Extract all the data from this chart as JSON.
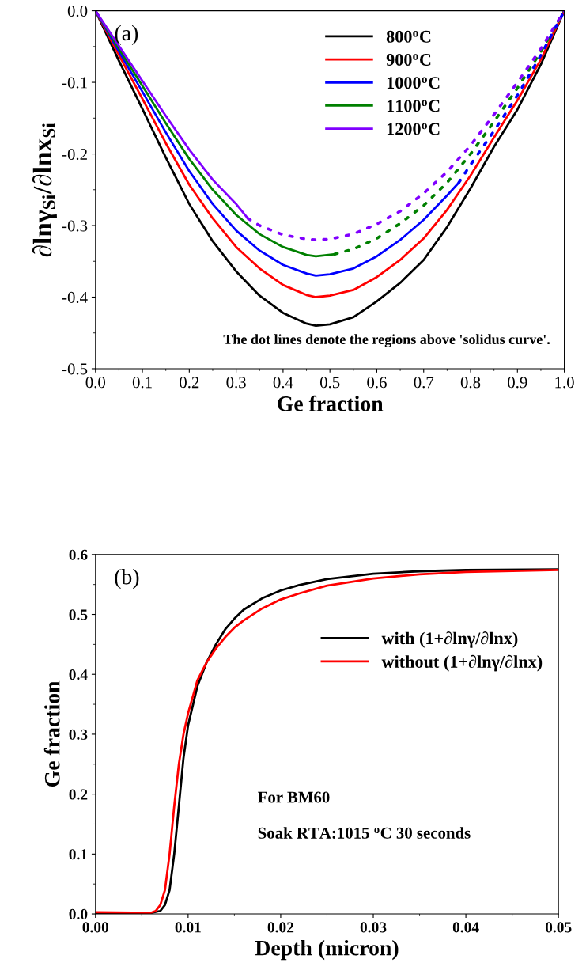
{
  "chart_data": [
    {
      "type": "line",
      "xlabel": "Ge fraction",
      "ylabel": "∂lnγ$_{Si}$/∂lnx$_{Si}$",
      "xlim": [
        0,
        1
      ],
      "ylim": [
        -0.5,
        0
      ],
      "xticks": [
        {
          "value": 0,
          "label": "0.0"
        },
        {
          "value": 0.1,
          "label": "0.1"
        },
        {
          "value": 0.2,
          "label": "0.2"
        },
        {
          "value": 0.3,
          "label": "0.3"
        },
        {
          "value": 0.4,
          "label": "0.4"
        },
        {
          "value": 0.5,
          "label": "0.5"
        },
        {
          "value": 0.6,
          "label": "0.6"
        },
        {
          "value": 0.7,
          "label": "0.7"
        },
        {
          "value": 0.8,
          "label": "0.8"
        },
        {
          "value": 0.9,
          "label": "0.9"
        },
        {
          "value": 1,
          "label": "1.0"
        }
      ],
      "yticks": [
        {
          "value": -0.5,
          "label": "-0.5"
        },
        {
          "value": -0.4,
          "label": "-0.4"
        },
        {
          "value": -0.3,
          "label": "-0.3"
        },
        {
          "value": -0.2,
          "label": "-0.2"
        },
        {
          "value": -0.1,
          "label": "-0.1"
        },
        {
          "value": 0,
          "label": "0.0"
        }
      ],
      "legend": "top right",
      "grid": false,
      "annotations": [
        "(a)",
        "The dot lines denote the regions above 'solidus curve'."
      ],
      "series": [
        {
          "name": "800$^{o}$C",
          "color": "#000000",
          "line_style": "solid",
          "x": [
            0,
            0.05,
            0.1,
            0.15,
            0.2,
            0.25,
            0.3,
            0.35,
            0.4,
            0.45,
            0.47,
            0.5,
            0.55,
            0.6,
            0.65,
            0.7,
            0.75,
            0.8,
            0.85,
            0.9,
            0.95,
            1.0
          ],
          "values": [
            0,
            -0.07,
            -0.137,
            -0.205,
            -0.27,
            -0.322,
            -0.364,
            -0.398,
            -0.422,
            -0.437,
            -0.44,
            -0.438,
            -0.428,
            -0.406,
            -0.38,
            -0.348,
            -0.302,
            -0.248,
            -0.19,
            -0.138,
            -0.075,
            0
          ]
        },
        {
          "name": "900$^{o}$C",
          "color": "#ff0000",
          "line_style": "solid",
          "x": [
            0,
            0.05,
            0.1,
            0.15,
            0.2,
            0.25,
            0.3,
            0.35,
            0.4,
            0.45,
            0.47,
            0.5,
            0.55,
            0.6,
            0.65,
            0.7,
            0.75,
            0.8,
            0.85,
            0.9,
            0.95,
            1.0
          ],
          "values": [
            0,
            -0.062,
            -0.123,
            -0.185,
            -0.243,
            -0.29,
            -0.33,
            -0.36,
            -0.383,
            -0.397,
            -0.4,
            -0.398,
            -0.39,
            -0.372,
            -0.348,
            -0.318,
            -0.278,
            -0.23,
            -0.177,
            -0.125,
            -0.068,
            0
          ]
        },
        {
          "name": "1000$^{o}$C",
          "color": "#0000ff",
          "line_style": "solid",
          "x": [
            0,
            0.05,
            0.1,
            0.15,
            0.2,
            0.25,
            0.3,
            0.35,
            0.4,
            0.45,
            0.47,
            0.5,
            0.55,
            0.6,
            0.65,
            0.7,
            0.75,
            0.775
          ],
          "values": [
            0,
            -0.057,
            -0.113,
            -0.17,
            -0.224,
            -0.27,
            -0.307,
            -0.335,
            -0.355,
            -0.367,
            -0.37,
            -0.368,
            -0.36,
            -0.343,
            -0.32,
            -0.292,
            -0.258,
            -0.24
          ]
        },
        {
          "name": "1100$^{o}$C",
          "color": "#008000",
          "line_style": "solid",
          "x": [
            0,
            0.05,
            0.1,
            0.15,
            0.2,
            0.25,
            0.3,
            0.35,
            0.4,
            0.45,
            0.47,
            0.51
          ],
          "values": [
            0,
            -0.053,
            -0.105,
            -0.157,
            -0.207,
            -0.25,
            -0.285,
            -0.312,
            -0.33,
            -0.341,
            -0.343,
            -0.34
          ]
        },
        {
          "name": "1200$^{o}$C",
          "color": "#8000ff",
          "line_style": "solid",
          "x": [
            0,
            0.05,
            0.1,
            0.15,
            0.2,
            0.25,
            0.3,
            0.325
          ],
          "values": [
            0,
            -0.049,
            -0.098,
            -0.147,
            -0.194,
            -0.236,
            -0.27,
            -0.29
          ]
        },
        {
          "color": "#0000ff",
          "line_style": "dotted",
          "x": [
            0.775,
            0.8,
            0.85,
            0.9,
            0.95,
            1.0
          ],
          "values": [
            -0.24,
            -0.215,
            -0.168,
            -0.118,
            -0.062,
            0
          ]
        },
        {
          "color": "#008000",
          "line_style": "dotted",
          "x": [
            0.51,
            0.55,
            0.6,
            0.65,
            0.7,
            0.75,
            0.8,
            0.85,
            0.9,
            0.95,
            1.0
          ],
          "values": [
            -0.34,
            -0.333,
            -0.318,
            -0.297,
            -0.272,
            -0.24,
            -0.2,
            -0.155,
            -0.108,
            -0.057,
            0
          ]
        },
        {
          "color": "#8000ff",
          "line_style": "dotted",
          "x": [
            0.325,
            0.35,
            0.4,
            0.45,
            0.47,
            0.5,
            0.55,
            0.6,
            0.65,
            0.7,
            0.75,
            0.8,
            0.85,
            0.9,
            0.95,
            1.0
          ],
          "values": [
            -0.29,
            -0.3,
            -0.313,
            -0.319,
            -0.32,
            -0.319,
            -0.312,
            -0.298,
            -0.28,
            -0.255,
            -0.225,
            -0.188,
            -0.145,
            -0.1,
            -0.053,
            0
          ]
        }
      ]
    },
    {
      "type": "line",
      "xlabel": "Depth (micron)",
      "ylabel": "Ge fraction",
      "xlim": [
        0,
        0.05
      ],
      "ylim": [
        0,
        0.6
      ],
      "xticks": [
        {
          "value": 0,
          "label": "0.00"
        },
        {
          "value": 0.01,
          "label": "0.01"
        },
        {
          "value": 0.02,
          "label": "0.02"
        },
        {
          "value": 0.03,
          "label": "0.03"
        },
        {
          "value": 0.04,
          "label": "0.04"
        },
        {
          "value": 0.05,
          "label": "0.05"
        }
      ],
      "yticks": [
        {
          "value": 0,
          "label": "0.0"
        },
        {
          "value": 0.1,
          "label": "0.1"
        },
        {
          "value": 0.2,
          "label": "0.2"
        },
        {
          "value": 0.3,
          "label": "0.3"
        },
        {
          "value": 0.4,
          "label": "0.4"
        },
        {
          "value": 0.5,
          "label": "0.5"
        },
        {
          "value": 0.6,
          "label": "0.6"
        }
      ],
      "legend": "top right",
      "grid": false,
      "annotations": [
        "(b)",
        "For BM60",
        "Soak RTA:1015 $^{o}$C 30 seconds"
      ],
      "series": [
        {
          "name": "with (1+∂lnγ/∂lnx)",
          "color": "#000000",
          "line_style": "solid",
          "x": [
            0,
            0.006,
            0.007,
            0.0075,
            0.008,
            0.0085,
            0.009,
            0.0095,
            0.01,
            0.011,
            0.012,
            0.013,
            0.014,
            0.015,
            0.016,
            0.018,
            0.02,
            0.022,
            0.025,
            0.03,
            0.035,
            0.04,
            0.05
          ],
          "values": [
            0.002,
            0.002,
            0.005,
            0.015,
            0.04,
            0.1,
            0.18,
            0.26,
            0.315,
            0.38,
            0.42,
            0.45,
            0.475,
            0.493,
            0.508,
            0.527,
            0.54,
            0.549,
            0.559,
            0.568,
            0.572,
            0.574,
            0.575
          ]
        },
        {
          "name": "without (1+∂lnγ/∂lnx)",
          "color": "#ff0000",
          "line_style": "solid",
          "x": [
            0,
            0.006,
            0.0065,
            0.007,
            0.0075,
            0.008,
            0.0085,
            0.009,
            0.0095,
            0.01,
            0.011,
            0.012,
            0.013,
            0.014,
            0.015,
            0.016,
            0.018,
            0.02,
            0.022,
            0.025,
            0.03,
            0.035,
            0.04,
            0.05
          ],
          "values": [
            0.003,
            0.002,
            0.005,
            0.015,
            0.04,
            0.1,
            0.18,
            0.25,
            0.3,
            0.335,
            0.39,
            0.42,
            0.443,
            0.462,
            0.478,
            0.49,
            0.51,
            0.525,
            0.535,
            0.548,
            0.56,
            0.567,
            0.571,
            0.574
          ]
        }
      ]
    }
  ]
}
